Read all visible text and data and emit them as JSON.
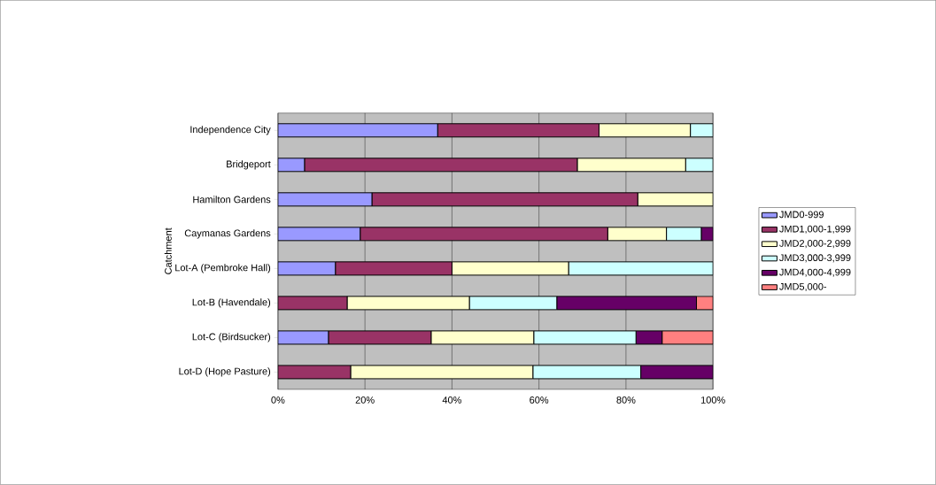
{
  "chart_data": {
    "type": "bar",
    "orientation": "horizontal",
    "stacked": true,
    "ylabel": "Catchment",
    "categories": [
      "Independence City",
      "Bridgeport",
      "Hamilton Gardens",
      "Caymanas Gardens",
      "Lot-A (Pembroke Hall)",
      "Lot-B (Havendale)",
      "Lot-C (Birdsucker)",
      "Lot-D (Hope Pasture)"
    ],
    "series": [
      {
        "name": "JMD0-999",
        "color": "#9999ff",
        "values": [
          36.7,
          6.1,
          21.6,
          18.9,
          13.2,
          0,
          11.6,
          0
        ]
      },
      {
        "name": "JMD1,000-1,999",
        "color": "#993366",
        "values": [
          37.1,
          62.7,
          61.1,
          56.9,
          26.8,
          15.9,
          23.6,
          16.7
        ]
      },
      {
        "name": "JMD2,000-2,999",
        "color": "#ffffcc",
        "values": [
          21.0,
          24.9,
          17.3,
          13.5,
          26.8,
          28.1,
          23.6,
          41.9
        ]
      },
      {
        "name": "JMD3,000-3,999",
        "color": "#ccffff",
        "values": [
          5.2,
          6.3,
          0,
          8.0,
          33.2,
          20.1,
          23.5,
          24.8
        ]
      },
      {
        "name": "JMD4,000-4,999",
        "color": "#660066",
        "values": [
          0,
          0,
          0,
          2.7,
          0,
          32.1,
          6.0,
          16.6
        ]
      },
      {
        "name": "JMD5,000-",
        "color": "#ff8080",
        "values": [
          0,
          0,
          0,
          0,
          0,
          3.8,
          11.7,
          0
        ]
      }
    ],
    "xlim": [
      0,
      100
    ],
    "xticks": [
      {
        "value": 0,
        "label": "0%"
      },
      {
        "value": 20,
        "label": "20%"
      },
      {
        "value": 40,
        "label": "40%"
      },
      {
        "value": 60,
        "label": "60%"
      },
      {
        "value": 80,
        "label": "80%"
      },
      {
        "value": 100,
        "label": "100%"
      }
    ],
    "grid": "x",
    "legend": "right"
  }
}
